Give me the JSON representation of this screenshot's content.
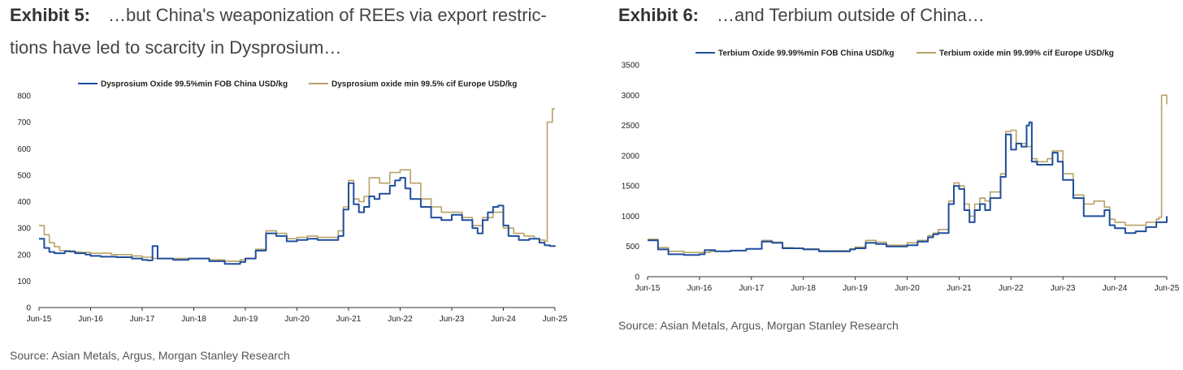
{
  "colors": {
    "china": "#1f4e9c",
    "europe": "#b7a265",
    "axis": "#333333"
  },
  "exhibits": [
    {
      "label": "Exhibit 5:",
      "title_line1": "…but China's weaponization of REEs via export restric-",
      "title_line2": "tions have led to scarcity in Dysprosium…",
      "source": "Source: Asian Metals, Argus, Morgan Stanley Research"
    },
    {
      "label": "Exhibit 6:",
      "title_line1": "…and Terbium outside of China…",
      "source": "Source: Asian Metals, Argus, Morgan Stanley Research"
    }
  ],
  "chart_data": [
    {
      "type": "line",
      "title": "",
      "xlabel": "",
      "ylabel": "",
      "ylim": [
        0,
        800
      ],
      "yticks": [
        "0",
        "100",
        "200",
        "300",
        "400",
        "500",
        "600",
        "700",
        "800"
      ],
      "xticks": [
        "Jun-15",
        "Jun-16",
        "Jun-17",
        "Jun-18",
        "Jun-19",
        "Jun-20",
        "Jun-21",
        "Jun-22",
        "Jun-23",
        "Jun-24",
        "Jun-25"
      ],
      "x_unit": "years since Jun-15",
      "series": [
        {
          "name": "Dysprosium Oxide 99.5%min FOB China USD/kg",
          "color": "#1f4e9c",
          "points": [
            [
              0,
              260
            ],
            [
              0.1,
              225
            ],
            [
              0.2,
              210
            ],
            [
              0.3,
              205
            ],
            [
              0.5,
              212
            ],
            [
              0.7,
              205
            ],
            [
              0.9,
              200
            ],
            [
              1.0,
              195
            ],
            [
              1.2,
              192
            ],
            [
              1.5,
              190
            ],
            [
              1.8,
              185
            ],
            [
              2.0,
              180
            ],
            [
              2.1,
              178
            ],
            [
              2.2,
              232
            ],
            [
              2.3,
              185
            ],
            [
              2.6,
              180
            ],
            [
              2.9,
              185
            ],
            [
              3.0,
              185
            ],
            [
              3.3,
              175
            ],
            [
              3.6,
              165
            ],
            [
              3.9,
              172
            ],
            [
              4.0,
              185
            ],
            [
              4.2,
              215
            ],
            [
              4.4,
              280
            ],
            [
              4.6,
              270
            ],
            [
              4.8,
              250
            ],
            [
              5.0,
              255
            ],
            [
              5.2,
              260
            ],
            [
              5.4,
              255
            ],
            [
              5.6,
              255
            ],
            [
              5.8,
              270
            ],
            [
              5.9,
              370
            ],
            [
              6.0,
              470
            ],
            [
              6.1,
              390
            ],
            [
              6.2,
              360
            ],
            [
              6.3,
              380
            ],
            [
              6.4,
              420
            ],
            [
              6.5,
              410
            ],
            [
              6.6,
              430
            ],
            [
              6.8,
              460
            ],
            [
              6.9,
              480
            ],
            [
              7.0,
              490
            ],
            [
              7.1,
              450
            ],
            [
              7.2,
              410
            ],
            [
              7.4,
              380
            ],
            [
              7.6,
              340
            ],
            [
              7.8,
              330
            ],
            [
              8.0,
              350
            ],
            [
              8.2,
              330
            ],
            [
              8.4,
              300
            ],
            [
              8.5,
              280
            ],
            [
              8.6,
              330
            ],
            [
              8.7,
              360
            ],
            [
              8.8,
              380
            ],
            [
              8.9,
              385
            ],
            [
              9.0,
              310
            ],
            [
              9.1,
              270
            ],
            [
              9.3,
              255
            ],
            [
              9.5,
              260
            ],
            [
              9.7,
              245
            ],
            [
              9.8,
              235
            ],
            [
              9.9,
              232
            ],
            [
              10.0,
              230
            ]
          ]
        },
        {
          "name": "Dysprosium oxide min 99.5% cif Europe USD/kg",
          "color": "#b7a265",
          "points": [
            [
              0,
              310
            ],
            [
              0.1,
              275
            ],
            [
              0.2,
              245
            ],
            [
              0.3,
              230
            ],
            [
              0.4,
              215
            ],
            [
              0.6,
              210
            ],
            [
              0.8,
              208
            ],
            [
              1.0,
              205
            ],
            [
              1.4,
              200
            ],
            [
              1.8,
              195
            ],
            [
              2.0,
              190
            ],
            [
              2.2,
              185
            ],
            [
              2.5,
              185
            ],
            [
              3.0,
              185
            ],
            [
              3.3,
              180
            ],
            [
              3.6,
              175
            ],
            [
              3.9,
              180
            ],
            [
              4.0,
              185
            ],
            [
              4.2,
              220
            ],
            [
              4.4,
              290
            ],
            [
              4.6,
              280
            ],
            [
              4.8,
              260
            ],
            [
              5.0,
              265
            ],
            [
              5.2,
              270
            ],
            [
              5.4,
              265
            ],
            [
              5.6,
              265
            ],
            [
              5.8,
              290
            ],
            [
              5.9,
              380
            ],
            [
              6.0,
              480
            ],
            [
              6.1,
              410
            ],
            [
              6.2,
              400
            ],
            [
              6.3,
              420
            ],
            [
              6.4,
              490
            ],
            [
              6.6,
              470
            ],
            [
              6.8,
              510
            ],
            [
              7.0,
              520
            ],
            [
              7.2,
              470
            ],
            [
              7.4,
              410
            ],
            [
              7.6,
              380
            ],
            [
              7.8,
              360
            ],
            [
              8.0,
              360
            ],
            [
              8.2,
              340
            ],
            [
              8.4,
              310
            ],
            [
              8.6,
              340
            ],
            [
              8.8,
              360
            ],
            [
              9.0,
              300
            ],
            [
              9.2,
              280
            ],
            [
              9.4,
              270
            ],
            [
              9.6,
              260
            ],
            [
              9.7,
              255
            ],
            [
              9.8,
              250
            ],
            [
              9.85,
              700
            ],
            [
              9.9,
              700
            ],
            [
              9.95,
              750
            ],
            [
              10.0,
              750
            ]
          ]
        }
      ]
    },
    {
      "type": "line",
      "title": "",
      "xlabel": "",
      "ylabel": "",
      "ylim": [
        0,
        3500
      ],
      "yticks": [
        "0",
        "500",
        "1000",
        "1500",
        "2000",
        "2500",
        "3000",
        "3500"
      ],
      "xticks": [
        "Jun-15",
        "Jun-16",
        "Jun-17",
        "Jun-18",
        "Jun-19",
        "Jun-20",
        "Jun-21",
        "Jun-22",
        "Jun-23",
        "Jun-24",
        "Jun-25"
      ],
      "x_unit": "years since Jun-15",
      "series": [
        {
          "name": "Terbium Oxide 99.99%min FOB China USD/kg",
          "color": "#1f4e9c",
          "points": [
            [
              0,
              600
            ],
            [
              0.2,
              450
            ],
            [
              0.4,
              370
            ],
            [
              0.7,
              360
            ],
            [
              1.0,
              370
            ],
            [
              1.1,
              440
            ],
            [
              1.3,
              420
            ],
            [
              1.6,
              430
            ],
            [
              1.9,
              460
            ],
            [
              2.2,
              580
            ],
            [
              2.4,
              560
            ],
            [
              2.6,
              470
            ],
            [
              2.8,
              470
            ],
            [
              3.0,
              450
            ],
            [
              3.3,
              420
            ],
            [
              3.6,
              420
            ],
            [
              3.9,
              450
            ],
            [
              4.0,
              470
            ],
            [
              4.2,
              560
            ],
            [
              4.4,
              540
            ],
            [
              4.6,
              500
            ],
            [
              4.8,
              500
            ],
            [
              5.0,
              520
            ],
            [
              5.2,
              580
            ],
            [
              5.4,
              650
            ],
            [
              5.5,
              700
            ],
            [
              5.6,
              720
            ],
            [
              5.8,
              1200
            ],
            [
              5.9,
              1500
            ],
            [
              6.0,
              1450
            ],
            [
              6.1,
              1100
            ],
            [
              6.2,
              900
            ],
            [
              6.3,
              1100
            ],
            [
              6.4,
              1200
            ],
            [
              6.5,
              1100
            ],
            [
              6.6,
              1300
            ],
            [
              6.8,
              1650
            ],
            [
              6.9,
              2350
            ],
            [
              7.0,
              2100
            ],
            [
              7.1,
              2200
            ],
            [
              7.2,
              2150
            ],
            [
              7.3,
              2500
            ],
            [
              7.35,
              2550
            ],
            [
              7.4,
              1900
            ],
            [
              7.5,
              1850
            ],
            [
              7.7,
              1850
            ],
            [
              7.8,
              2050
            ],
            [
              7.9,
              1900
            ],
            [
              8.0,
              1600
            ],
            [
              8.2,
              1300
            ],
            [
              8.4,
              1000
            ],
            [
              8.6,
              1000
            ],
            [
              8.8,
              1100
            ],
            [
              8.9,
              850
            ],
            [
              9.0,
              800
            ],
            [
              9.2,
              720
            ],
            [
              9.4,
              750
            ],
            [
              9.6,
              820
            ],
            [
              9.8,
              900
            ],
            [
              10.0,
              1000
            ]
          ]
        },
        {
          "name": "Terbium oxide min 99.99% cif Europe USD/kg",
          "color": "#b7a265",
          "points": [
            [
              0,
              620
            ],
            [
              0.2,
              480
            ],
            [
              0.4,
              420
            ],
            [
              0.7,
              400
            ],
            [
              1.0,
              400
            ],
            [
              1.2,
              420
            ],
            [
              1.6,
              430
            ],
            [
              1.9,
              460
            ],
            [
              2.2,
              600
            ],
            [
              2.4,
              570
            ],
            [
              2.6,
              480
            ],
            [
              2.8,
              470
            ],
            [
              3.0,
              460
            ],
            [
              3.3,
              430
            ],
            [
              3.6,
              430
            ],
            [
              3.9,
              460
            ],
            [
              4.0,
              490
            ],
            [
              4.2,
              600
            ],
            [
              4.4,
              570
            ],
            [
              4.6,
              520
            ],
            [
              4.8,
              520
            ],
            [
              5.0,
              560
            ],
            [
              5.2,
              600
            ],
            [
              5.4,
              680
            ],
            [
              5.5,
              720
            ],
            [
              5.6,
              780
            ],
            [
              5.8,
              1250
            ],
            [
              5.9,
              1550
            ],
            [
              6.0,
              1500
            ],
            [
              6.1,
              1200
            ],
            [
              6.2,
              1000
            ],
            [
              6.3,
              1200
            ],
            [
              6.4,
              1300
            ],
            [
              6.5,
              1250
            ],
            [
              6.6,
              1400
            ],
            [
              6.8,
              1700
            ],
            [
              6.9,
              2400
            ],
            [
              7.0,
              2420
            ],
            [
              7.1,
              2200
            ],
            [
              7.2,
              2200
            ],
            [
              7.3,
              2150
            ],
            [
              7.4,
              1950
            ],
            [
              7.5,
              1900
            ],
            [
              7.6,
              1900
            ],
            [
              7.7,
              1950
            ],
            [
              7.8,
              2080
            ],
            [
              8.0,
              1700
            ],
            [
              8.2,
              1350
            ],
            [
              8.4,
              1200
            ],
            [
              8.6,
              1250
            ],
            [
              8.8,
              1150
            ],
            [
              8.9,
              950
            ],
            [
              9.0,
              900
            ],
            [
              9.2,
              850
            ],
            [
              9.4,
              850
            ],
            [
              9.6,
              900
            ],
            [
              9.8,
              950
            ],
            [
              9.85,
              980
            ],
            [
              9.9,
              3000
            ],
            [
              9.95,
              3000
            ],
            [
              10.0,
              2850
            ]
          ]
        }
      ]
    }
  ]
}
